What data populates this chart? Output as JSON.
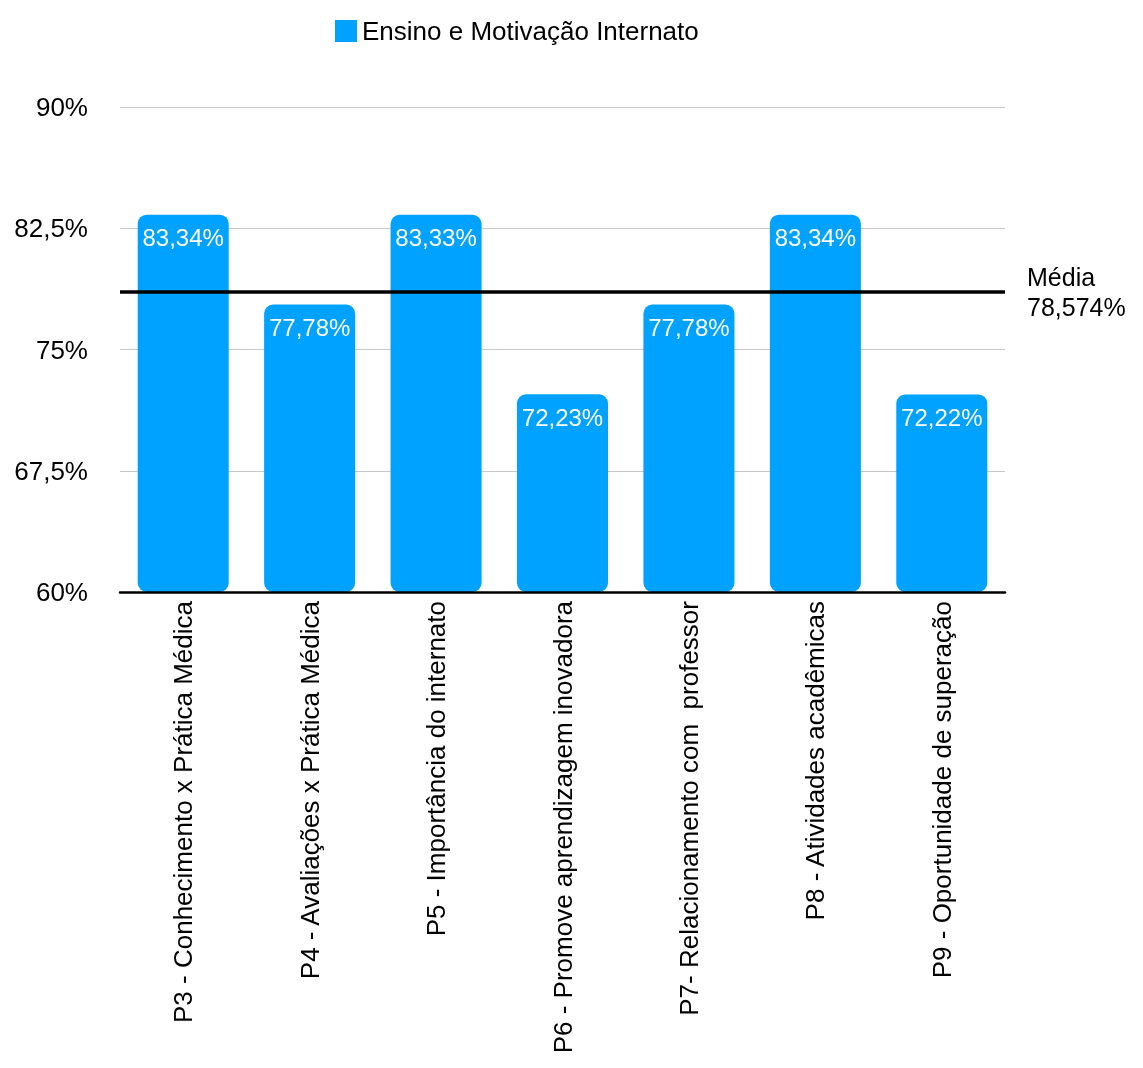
{
  "chart_data": {
    "type": "bar",
    "categories": [
      "P3 - Conhecimento x Prática Médica",
      "P4 - Avaliações x Prática Médica",
      "P5 - Importância do internato",
      "P6 - Promove aprendizagem inovadora",
      "P7- Relacionamento com  professor",
      "P8 - Atividades acadêmicas",
      "P9 - Oportunidade de superação"
    ],
    "series": [
      {
        "name": "Ensino e Motivação Internato",
        "color": "#00a2ff",
        "values": [
          83.34,
          77.78,
          83.33,
          72.23,
          77.78,
          83.34,
          72.22
        ],
        "value_labels": [
          "83,34%",
          "77,78%",
          "83,33%",
          "72,23%",
          "77,78%",
          "83,34%",
          "72,22%"
        ]
      }
    ],
    "ylim": [
      60,
      90
    ],
    "yticks": [
      {
        "value": 60,
        "label": "60%"
      },
      {
        "value": 67.5,
        "label": "67,5%"
      },
      {
        "value": 75,
        "label": "75%"
      },
      {
        "value": 82.5,
        "label": "82,5%"
      },
      {
        "value": 90,
        "label": "90%"
      }
    ],
    "ref_lines": [
      {
        "axis": "y",
        "value": 78.574,
        "label": "Média\n78,574%",
        "color": "#000000"
      }
    ],
    "grid": "y",
    "legend": "top"
  }
}
